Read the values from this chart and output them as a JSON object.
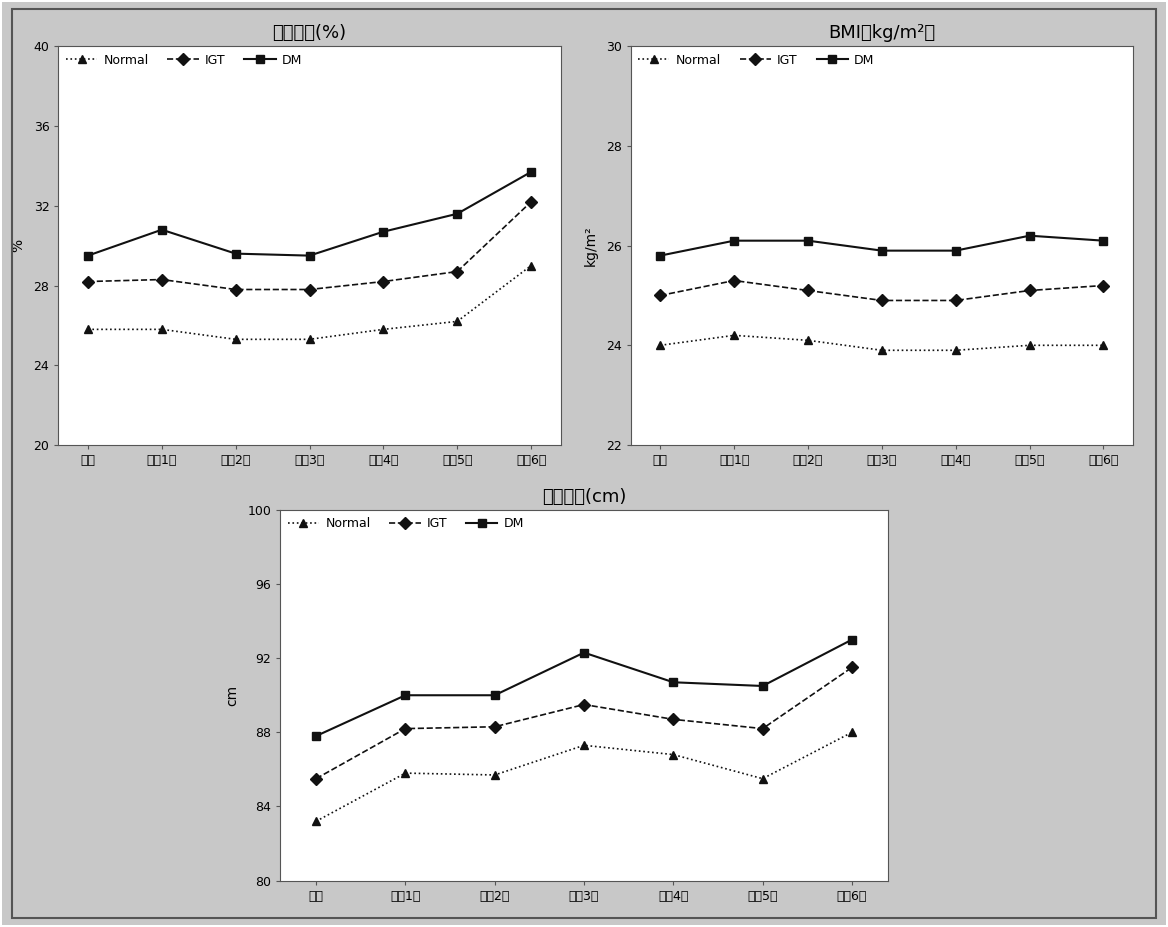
{
  "x_labels": [
    "기초",
    "추적1기",
    "추적2기",
    "추적3기",
    "추적4기",
    "추적5기",
    "추적6기"
  ],
  "chart1": {
    "title": "체지방률(%)",
    "ylabel": "%",
    "ylim": [
      20,
      40
    ],
    "yticks": [
      20,
      24,
      28,
      32,
      36,
      40
    ],
    "normal": [
      25.8,
      25.8,
      25.3,
      25.3,
      25.8,
      26.2,
      29.0
    ],
    "igt": [
      28.2,
      28.3,
      27.8,
      27.8,
      28.2,
      28.7,
      32.2
    ],
    "dm": [
      29.5,
      30.8,
      29.6,
      29.5,
      30.7,
      31.6,
      33.7
    ]
  },
  "chart2": {
    "title": "BMI（kg/m²）",
    "ylabel": "kg/m²",
    "ylim": [
      22,
      30
    ],
    "yticks": [
      22,
      24,
      26,
      28,
      30
    ],
    "normal": [
      24.0,
      24.2,
      24.1,
      23.9,
      23.9,
      24.0,
      24.0
    ],
    "igt": [
      25.0,
      25.3,
      25.1,
      24.9,
      24.9,
      25.1,
      25.2
    ],
    "dm": [
      25.8,
      26.1,
      26.1,
      25.9,
      25.9,
      26.2,
      26.1
    ]
  },
  "chart3": {
    "title": "허리둘레(cm)",
    "ylabel": "cm",
    "ylim": [
      80,
      100
    ],
    "yticks": [
      80,
      84,
      88,
      92,
      96,
      100
    ],
    "normal": [
      83.2,
      85.8,
      85.7,
      87.3,
      86.8,
      85.5,
      88.0
    ],
    "igt": [
      85.5,
      88.2,
      88.3,
      89.5,
      88.7,
      88.2,
      91.5
    ],
    "dm": [
      87.8,
      90.0,
      90.0,
      92.3,
      90.7,
      90.5,
      93.0
    ]
  },
  "legend_labels": [
    "Normal",
    "IGT",
    "DM"
  ],
  "background_color": "#ffffff",
  "outer_bg": "#c8c8c8",
  "line_color": "#111111",
  "marker_normal": "^",
  "marker_igt": "D",
  "marker_dm": "s"
}
